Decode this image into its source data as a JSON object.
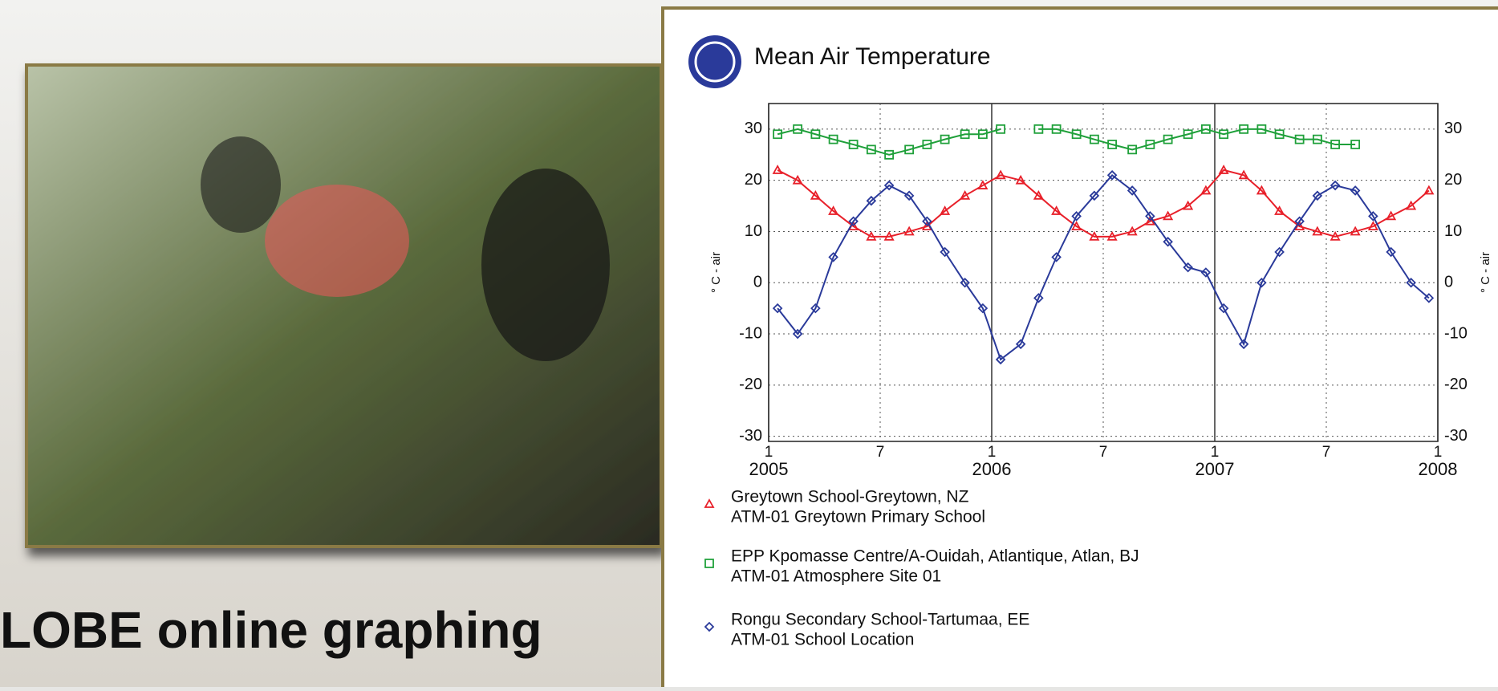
{
  "slide_text": "LOBE online graphing",
  "chart_data": {
    "type": "line",
    "title": "Mean Air Temperature",
    "y_label": "° C - air",
    "xlim": [
      2005,
      2008
    ],
    "xticks": [
      {
        "value": 2005,
        "label": "1",
        "year": "2005"
      },
      {
        "value": 2005.5,
        "label": "7"
      },
      {
        "value": 2006,
        "label": "1",
        "year": "2006"
      },
      {
        "value": 2006.5,
        "label": "7"
      },
      {
        "value": 2007,
        "label": "1",
        "year": "2007"
      },
      {
        "value": 2007.5,
        "label": "7"
      },
      {
        "value": 2008,
        "label": "1",
        "year": "2008"
      }
    ],
    "ylim": [
      -31,
      35
    ],
    "yticks": [
      -30,
      -20,
      -10,
      0,
      10,
      20,
      30
    ],
    "grid": true,
    "x": [
      2005.04,
      2005.13,
      2005.21,
      2005.29,
      2005.38,
      2005.46,
      2005.54,
      2005.63,
      2005.71,
      2005.79,
      2005.88,
      2005.96,
      2006.04,
      2006.13,
      2006.21,
      2006.29,
      2006.38,
      2006.46,
      2006.54,
      2006.63,
      2006.71,
      2006.79,
      2006.88,
      2006.96,
      2007.04,
      2007.13,
      2007.21,
      2007.29,
      2007.38,
      2007.46,
      2007.54,
      2007.63,
      2007.71,
      2007.79,
      2007.88,
      2007.96
    ],
    "series": [
      {
        "name": "Greytown School-Greytown, NZ",
        "site": "ATM-01 Greytown Primary School",
        "color": "#e8202a",
        "marker": "triangle",
        "values": [
          22,
          20,
          17,
          14,
          11,
          9,
          9,
          10,
          11,
          14,
          17,
          19,
          21,
          20,
          17,
          14,
          11,
          9,
          9,
          10,
          12,
          13,
          15,
          18,
          22,
          21,
          18,
          14,
          11,
          10,
          9,
          10,
          11,
          13,
          15,
          18
        ]
      },
      {
        "name": "EPP Kpomasse Centre/A-Ouidah, Atlantique, Atlan, BJ",
        "site": "ATM-01 Atmosphere Site 01",
        "color": "#1fa03a",
        "marker": "square",
        "values": [
          29,
          30,
          29,
          28,
          27,
          26,
          25,
          26,
          27,
          28,
          29,
          29,
          30,
          null,
          30,
          30,
          29,
          28,
          27,
          26,
          27,
          28,
          29,
          30,
          29,
          30,
          30,
          29,
          28,
          28,
          27,
          27,
          null,
          null,
          null,
          null
        ]
      },
      {
        "name": "Rongu Secondary School-Tartumaa, EE",
        "site": "ATM-01 School Location",
        "color": "#2a3a9a",
        "marker": "diamond",
        "values": [
          -5,
          -10,
          -5,
          5,
          12,
          16,
          19,
          17,
          12,
          6,
          0,
          -5,
          -15,
          -12,
          -3,
          5,
          13,
          17,
          21,
          18,
          13,
          8,
          3,
          2,
          -5,
          -12,
          0,
          6,
          12,
          17,
          19,
          18,
          13,
          6,
          0,
          -3
        ]
      }
    ]
  }
}
